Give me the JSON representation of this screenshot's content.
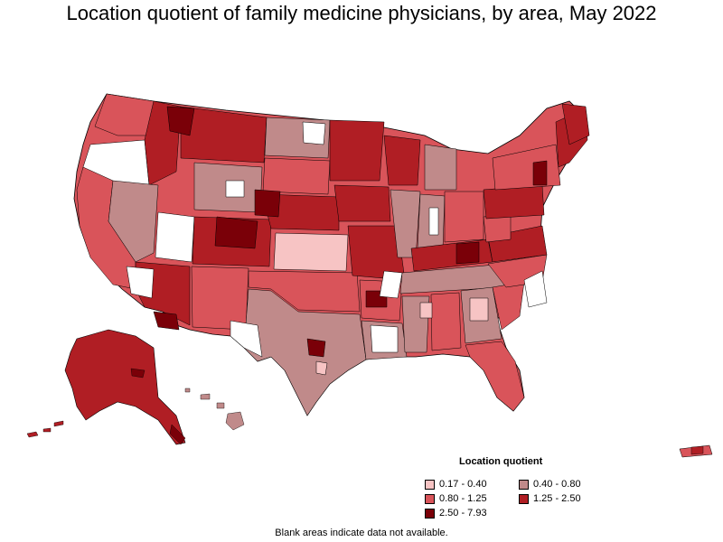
{
  "title": "Location quotient of family medicine physicians, by area, May 2022",
  "legend": {
    "title": "Location quotient",
    "items": [
      {
        "label": "0.17 - 0.40",
        "color": "#f7c4c4"
      },
      {
        "label": "0.40 - 0.80",
        "color": "#c08a8a"
      },
      {
        "label": "0.80 - 1.25",
        "color": "#d9545a"
      },
      {
        "label": "1.25 - 2.50",
        "color": "#b01e24"
      },
      {
        "label": "2.50 - 7.93",
        "color": "#7a0008"
      }
    ]
  },
  "footnote": "Blank areas indicate data not available.",
  "colors": {
    "q1": "#f7c4c4",
    "q2": "#c08a8a",
    "q3": "#d9545a",
    "q4": "#b01e24",
    "q5": "#7a0008",
    "blank": "#ffffff",
    "border": "#000000"
  }
}
